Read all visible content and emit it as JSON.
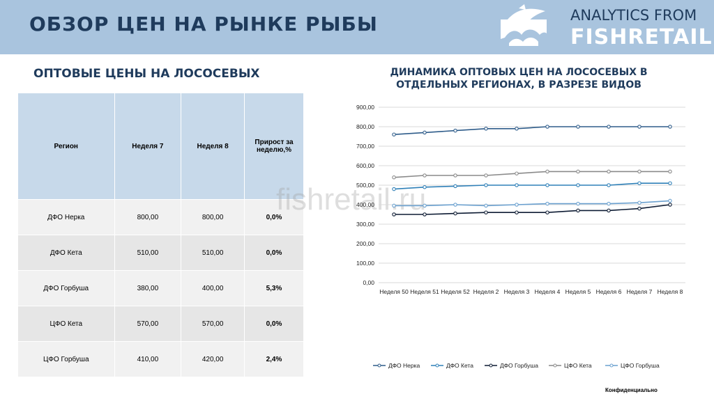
{
  "header": {
    "title": "ОБЗОР ЦЕН НА РЫНКЕ РЫБЫ",
    "brand_top": "ANALYTICS FROM",
    "brand_bottom": "FISHRETAIL"
  },
  "left_section": {
    "title": "ОПТОВЫЕ ЦЕНЫ НА ЛОСОСЕВЫХ"
  },
  "table": {
    "headers": [
      "Регион",
      "Неделя 7",
      "Неделя 8",
      "Прирост за неделю,%"
    ],
    "rows": [
      [
        "ДФО Нерка",
        "800,00",
        "800,00",
        "0,0%"
      ],
      [
        "ДФО Кета",
        "510,00",
        "510,00",
        "0,0%"
      ],
      [
        "ДФО Горбуша",
        "380,00",
        "400,00",
        "5,3%"
      ],
      [
        "ЦФО Кета",
        "570,00",
        "570,00",
        "0,0%"
      ],
      [
        "ЦФО Горбуша",
        "410,00",
        "420,00",
        "2,4%"
      ]
    ]
  },
  "watermark": "fishretail.ru",
  "footer": "Конфиденциально",
  "chart_data": {
    "type": "line",
    "title": "ДИНАМИКА ОПТОВЫХ ЦЕН НА ЛОСОСЕВЫХ В ОТДЕЛЬНЫХ РЕГИОНАХ, В РАЗРЕЗЕ ВИДОВ",
    "categories": [
      "Неделя 50",
      "Неделя 51",
      "Неделя 52",
      "Неделя 2",
      "Неделя 3",
      "Неделя 4",
      "Неделя 5",
      "Неделя 6",
      "Неделя 7",
      "Неделя 8"
    ],
    "ylim": [
      0,
      900
    ],
    "yticks": [
      0,
      100,
      200,
      300,
      400,
      500,
      600,
      700,
      800,
      900
    ],
    "ytick_labels": [
      "0,00",
      "100,00",
      "200,00",
      "300,00",
      "400,00",
      "500,00",
      "600,00",
      "700,00",
      "800,00",
      "900,00"
    ],
    "grid": true,
    "legend_position": "bottom",
    "series": [
      {
        "name": "ДФО Нерка",
        "color": "#2e5c8a",
        "values": [
          760,
          770,
          780,
          790,
          790,
          800,
          800,
          800,
          800,
          800
        ]
      },
      {
        "name": "ДФО Кета",
        "color": "#2f80b8",
        "values": [
          480,
          490,
          495,
          500,
          500,
          500,
          500,
          500,
          510,
          510
        ]
      },
      {
        "name": "ДФО Горбуша",
        "color": "#0d1b33",
        "values": [
          350,
          350,
          355,
          360,
          360,
          360,
          370,
          370,
          380,
          400
        ]
      },
      {
        "name": "ЦФО Кета",
        "color": "#8a8a8a",
        "values": [
          540,
          550,
          550,
          550,
          560,
          570,
          570,
          570,
          570,
          570
        ]
      },
      {
        "name": "ЦФО Горбуша",
        "color": "#6aa0cf",
        "values": [
          395,
          395,
          400,
          395,
          400,
          405,
          405,
          405,
          410,
          420
        ]
      }
    ]
  }
}
